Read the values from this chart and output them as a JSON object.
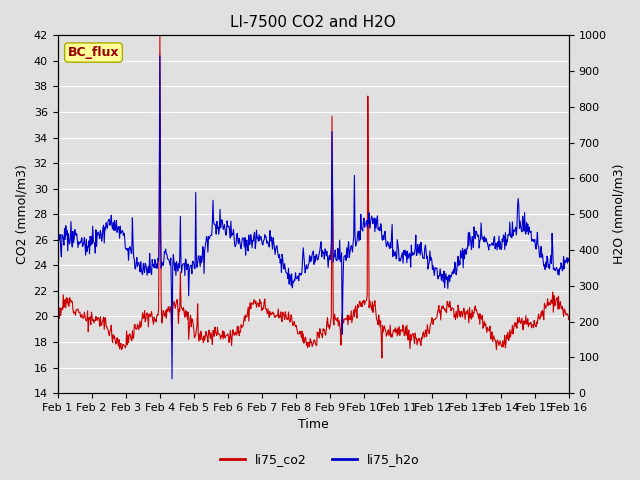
{
  "title": "LI-7500 CO2 and H2O",
  "xlabel": "Time",
  "ylabel_left": "CO2 (mmol/m3)",
  "ylabel_right": "H2O (mmol/m3)",
  "ylim_left": [
    14,
    42
  ],
  "ylim_right": [
    0,
    1000
  ],
  "yticks_left": [
    14,
    16,
    18,
    20,
    22,
    24,
    26,
    28,
    30,
    32,
    34,
    36,
    38,
    40,
    42
  ],
  "yticks_right": [
    0,
    100,
    200,
    300,
    400,
    500,
    600,
    700,
    800,
    900,
    1000
  ],
  "color_co2": "#cc0000",
  "color_h2o": "#0000cc",
  "legend_label_co2": "li75_co2",
  "legend_label_h2o": "li75_h2o",
  "annotation_text": "BC_flux",
  "annotation_color": "#990000",
  "annotation_bg": "#ffff99",
  "plot_bg": "#e0e0e0",
  "grid_color": "#ffffff",
  "xticklabels": [
    "Feb 1",
    "Feb 2",
    "Feb 3",
    "Feb 4",
    "Feb 5",
    "Feb 6",
    "Feb 7",
    "Feb 8",
    "Feb 9",
    "Feb 10",
    "Feb 11",
    "Feb 12",
    "Feb 13",
    "Feb 14",
    "Feb 15",
    "Feb 16"
  ],
  "title_fontsize": 11,
  "axis_fontsize": 9,
  "tick_fontsize": 8
}
